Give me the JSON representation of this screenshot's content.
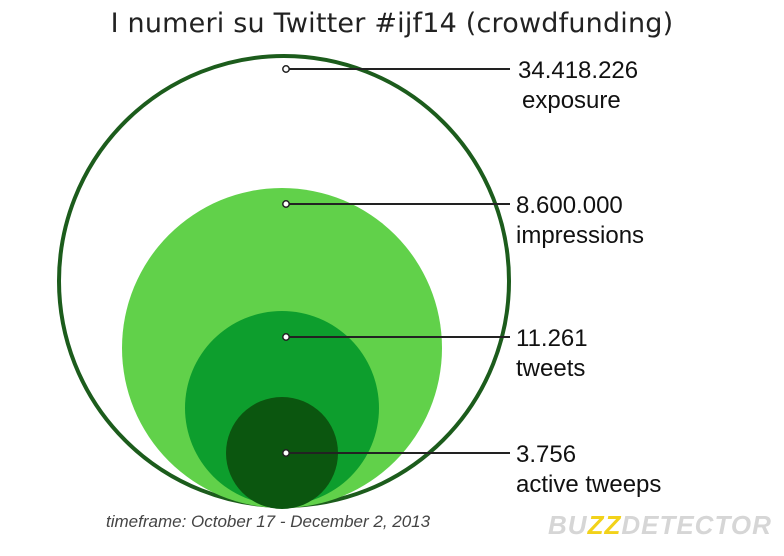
{
  "title": "I numeri su Twitter #ijf14 (crowdfunding)",
  "colors": {
    "outer_ring": "#1c5c1c",
    "impressions": "#61d14a",
    "tweets": "#0d9e2d",
    "active_tweeps": "#0b560f",
    "leader_line": "#222222"
  },
  "levels": [
    {
      "value": "34.418.226",
      "label": "exposure"
    },
    {
      "value": "8.600.000",
      "label": "impressions"
    },
    {
      "value": "11.261",
      "label": "tweets"
    },
    {
      "value": "3.756",
      "label": "active tweeps"
    }
  ],
  "footer": {
    "timeframe": "timeframe: October 17 - December 2, 2013"
  },
  "logo": {
    "part1": "BU",
    "part2": "ZZ",
    "part3": "DETECTOR"
  }
}
